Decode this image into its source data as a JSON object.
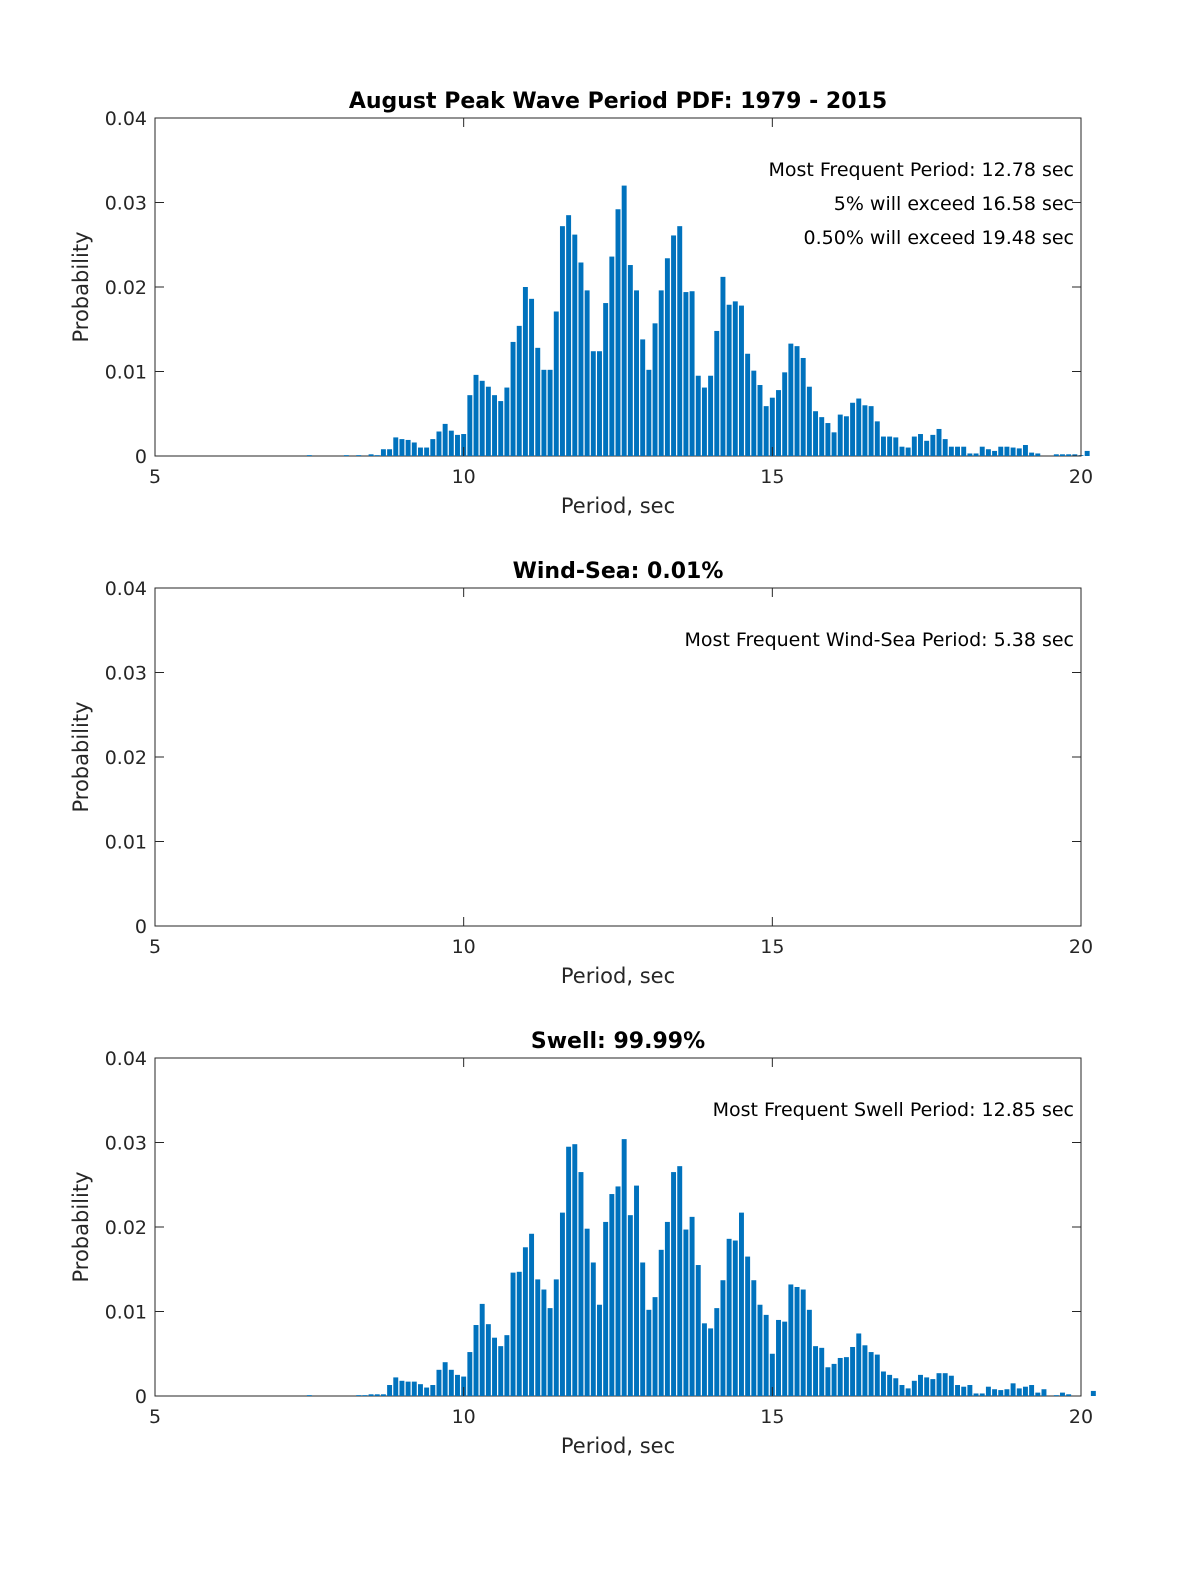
{
  "chart_data": [
    {
      "type": "bar",
      "title": "August Peak Wave Period PDF: 1979 - 2015",
      "xlabel": "Period, sec",
      "ylabel": "Probability",
      "xlim": [
        5,
        20
      ],
      "ylim": [
        0,
        0.04
      ],
      "xticks": [
        5,
        10,
        15,
        20
      ],
      "xtick_labels": [
        "5",
        "10",
        "15",
        "20"
      ],
      "yticks": [
        0,
        0.01,
        0.02,
        0.03,
        0.04
      ],
      "ytick_labels": [
        "0",
        "0.01",
        "0.02",
        "0.03",
        "0.04"
      ],
      "bar_color": "#0072BD",
      "annotations": [
        "Most Frequent Period: 12.78 sec",
        "5% will exceed 16.58 sec",
        "0.50% will exceed 19.48 sec"
      ],
      "x_start": 7.5,
      "x_step": 0.1,
      "values": [
        0.0001,
        0,
        0,
        0,
        0,
        0,
        0.0001,
        0,
        0.0001,
        0,
        0.0002,
        0.0001,
        0.0008,
        0.0008,
        0.0022,
        0.002,
        0.0019,
        0.0016,
        0.001,
        0.001,
        0.002,
        0.0029,
        0.0038,
        0.003,
        0.0025,
        0.0026,
        0.0072,
        0.0096,
        0.0089,
        0.0082,
        0.0072,
        0.0065,
        0.0081,
        0.0135,
        0.0154,
        0.02,
        0.0186,
        0.0128,
        0.0102,
        0.0102,
        0.0171,
        0.0272,
        0.0285,
        0.0262,
        0.0229,
        0.0196,
        0.0124,
        0.0124,
        0.0181,
        0.0236,
        0.0292,
        0.032,
        0.0226,
        0.0196,
        0.0138,
        0.0102,
        0.0157,
        0.0196,
        0.0234,
        0.0261,
        0.0272,
        0.0194,
        0.0195,
        0.0095,
        0.0081,
        0.0095,
        0.0148,
        0.0212,
        0.0179,
        0.0183,
        0.0178,
        0.0121,
        0.0101,
        0.0084,
        0.0059,
        0.0069,
        0.0078,
        0.0099,
        0.0133,
        0.013,
        0.0116,
        0.0082,
        0.0053,
        0.0046,
        0.0039,
        0.0028,
        0.0049,
        0.0047,
        0.0063,
        0.0068,
        0.006,
        0.0059,
        0.0041,
        0.0023,
        0.0023,
        0.0022,
        0.0011,
        0.001,
        0.0023,
        0.0026,
        0.0018,
        0.0025,
        0.0032,
        0.002,
        0.0011,
        0.0011,
        0.0011,
        0.0003,
        0.0003,
        0.0011,
        0.0008,
        0.0006,
        0.0011,
        0.0011,
        0.001,
        0.0009,
        0.0013,
        0.0004,
        0.0003,
        0,
        0,
        0.0002,
        0.0002,
        0.0002,
        0.0002,
        0.0001,
        0.0006
      ]
    },
    {
      "type": "bar",
      "title": "Wind-Sea: 0.01%",
      "xlabel": "Period, sec",
      "ylabel": "Probability",
      "xlim": [
        5,
        20
      ],
      "ylim": [
        0,
        0.04
      ],
      "xticks": [
        5,
        10,
        15,
        20
      ],
      "xtick_labels": [
        "5",
        "10",
        "15",
        "20"
      ],
      "yticks": [
        0,
        0.01,
        0.02,
        0.03,
        0.04
      ],
      "ytick_labels": [
        "0",
        "0.01",
        "0.02",
        "0.03",
        "0.04"
      ],
      "bar_color": "#0072BD",
      "annotations": [
        "Most Frequent Wind-Sea Period: 5.38 sec"
      ],
      "x_start": 7.5,
      "x_step": 0.1,
      "values": []
    },
    {
      "type": "bar",
      "title": "Swell: 99.99%",
      "xlabel": "Period, sec",
      "ylabel": "Probability",
      "xlim": [
        5,
        20
      ],
      "ylim": [
        0,
        0.04
      ],
      "xticks": [
        5,
        10,
        15,
        20
      ],
      "xtick_labels": [
        "5",
        "10",
        "15",
        "20"
      ],
      "yticks": [
        0,
        0.01,
        0.02,
        0.03,
        0.04
      ],
      "ytick_labels": [
        "0",
        "0.01",
        "0.02",
        "0.03",
        "0.04"
      ],
      "bar_color": "#0072BD",
      "annotations": [
        "Most Frequent Swell Period: 12.85 sec"
      ],
      "x_start": 7.5,
      "x_step": 0.1,
      "values": [
        0.0001,
        0,
        0,
        0,
        0,
        0,
        0,
        0,
        0.0001,
        0.0001,
        0.0002,
        0.0002,
        0.0002,
        0.0013,
        0.0022,
        0.0018,
        0.0017,
        0.0017,
        0.0014,
        0.001,
        0.0013,
        0.0031,
        0.004,
        0.0031,
        0.0025,
        0.0023,
        0.0052,
        0.0084,
        0.0109,
        0.0085,
        0.0069,
        0.0059,
        0.0072,
        0.0146,
        0.0147,
        0.0176,
        0.0192,
        0.0138,
        0.0126,
        0.0104,
        0.0138,
        0.0217,
        0.0295,
        0.0298,
        0.0265,
        0.0198,
        0.0158,
        0.0108,
        0.0206,
        0.0239,
        0.0248,
        0.0304,
        0.0214,
        0.0249,
        0.0158,
        0.0102,
        0.0117,
        0.0173,
        0.0206,
        0.0265,
        0.0272,
        0.0197,
        0.0212,
        0.0155,
        0.0086,
        0.008,
        0.0104,
        0.0137,
        0.0186,
        0.0184,
        0.0217,
        0.0165,
        0.0137,
        0.0108,
        0.0096,
        0.005,
        0.009,
        0.0088,
        0.0132,
        0.0129,
        0.0126,
        0.0102,
        0.0059,
        0.0057,
        0.0034,
        0.0038,
        0.0045,
        0.0046,
        0.0058,
        0.0074,
        0.006,
        0.0052,
        0.0049,
        0.0029,
        0.0025,
        0.0021,
        0.0013,
        0.0009,
        0.0018,
        0.0025,
        0.0022,
        0.002,
        0.0027,
        0.0027,
        0.0024,
        0.0013,
        0.0011,
        0.0013,
        0.0003,
        0.0003,
        0.0011,
        0.0008,
        0.0007,
        0.0008,
        0.0015,
        0.0009,
        0.0011,
        0.0013,
        0.0004,
        0.0008,
        0,
        0.0001,
        0.0004,
        0.0002,
        0,
        0,
        0,
        0.0006
      ]
    }
  ]
}
